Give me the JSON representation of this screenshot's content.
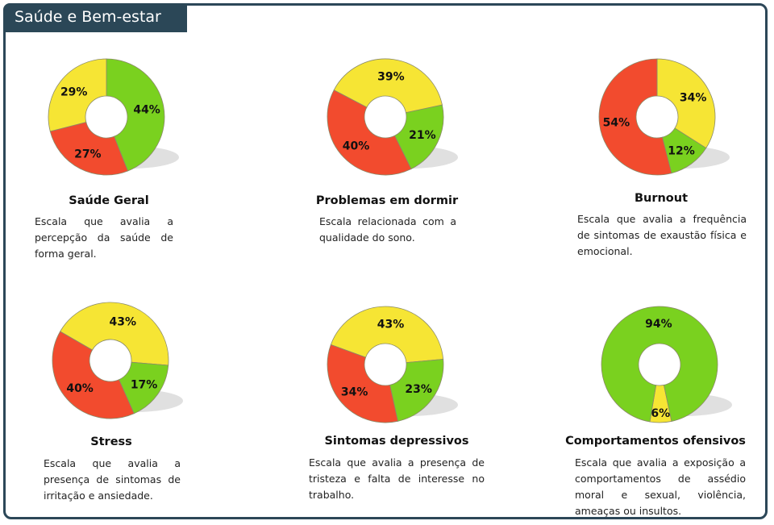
{
  "header": {
    "title": "Saúde e Bem-estar"
  },
  "colors": {
    "green": "#7ad11f",
    "red": "#f24b2e",
    "yellow": "#f6e534",
    "frame": "#2c4758"
  },
  "chart_data": [
    {
      "type": "pie",
      "title": "Saúde Geral",
      "description": "Escala que avalia a percepção da saúde de forma geral.",
      "slices": [
        {
          "color": "green",
          "value": 44
        },
        {
          "color": "red",
          "value": 27
        },
        {
          "color": "yellow",
          "value": 29
        }
      ]
    },
    {
      "type": "pie",
      "title": "Problemas em dormir",
      "description": "Escala relacionada com a qualidade do sono.",
      "slices": [
        {
          "color": "green",
          "value": 21
        },
        {
          "color": "red",
          "value": 40
        },
        {
          "color": "yellow",
          "value": 39
        }
      ]
    },
    {
      "type": "pie",
      "title": "Burnout",
      "description": "Escala que avalia a frequência de sintomas de exaustão física e emocional.",
      "slices": [
        {
          "color": "yellow",
          "value": 34
        },
        {
          "color": "green",
          "value": 12
        },
        {
          "color": "red",
          "value": 54
        }
      ]
    },
    {
      "type": "pie",
      "title": "Stress",
      "description": "Escala que avalia a presença de sintomas de irritação e ansiedade.",
      "slices": [
        {
          "color": "yellow",
          "value": 43
        },
        {
          "color": "green",
          "value": 17
        },
        {
          "color": "red",
          "value": 40
        }
      ]
    },
    {
      "type": "pie",
      "title": "Sintomas depressivos",
      "description": "Escala que avalia a presença de tristeza e falta de interesse no trabalho.",
      "slices": [
        {
          "color": "yellow",
          "value": 43
        },
        {
          "color": "green",
          "value": 23
        },
        {
          "color": "red",
          "value": 34
        }
      ]
    },
    {
      "type": "pie",
      "title": "Comportamentos ofensivos",
      "description": "Escala que avalia a exposição a comportamentos de assédio moral e sexual, violência, ameaças ou insultos.",
      "slices": [
        {
          "color": "yellow",
          "value": 6
        },
        {
          "color": "green",
          "value": 94
        }
      ]
    }
  ]
}
